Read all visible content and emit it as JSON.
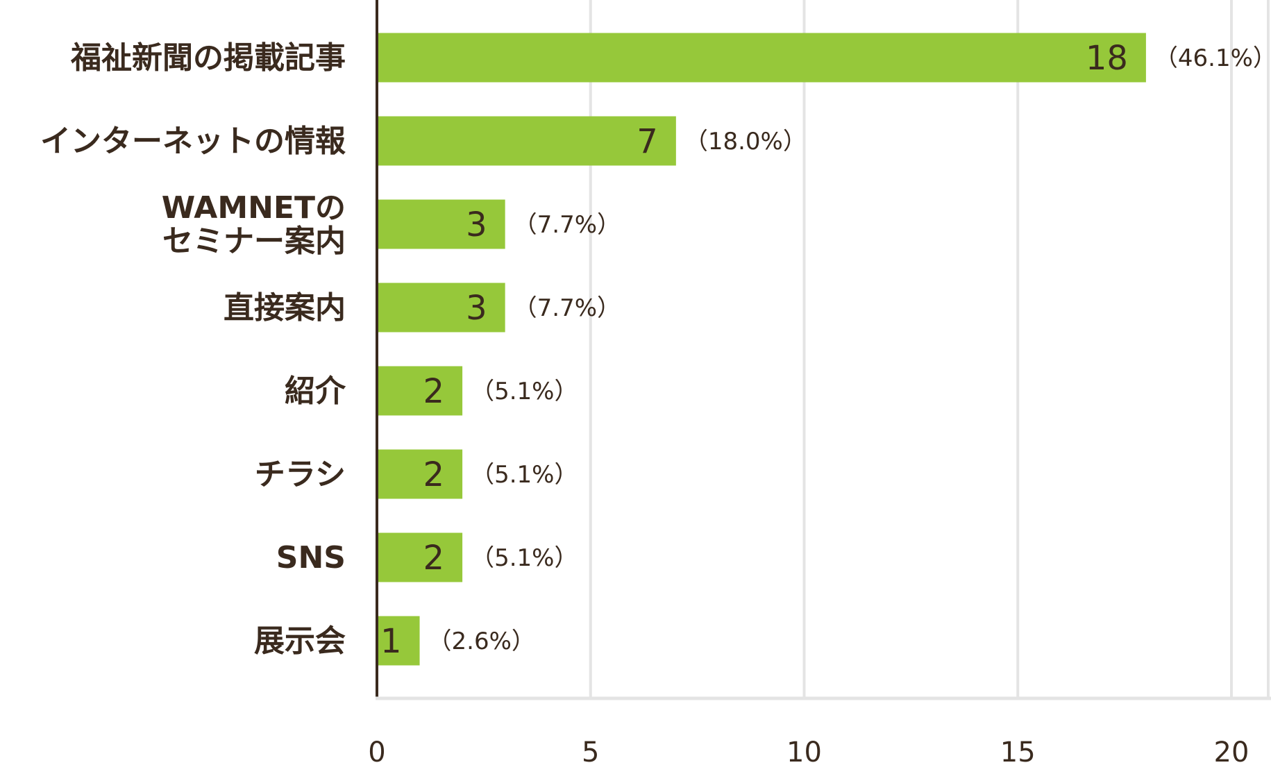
{
  "chart_data": {
    "type": "bar",
    "orientation": "horizontal",
    "categories": [
      [
        "福祉新聞の掲載記事"
      ],
      [
        "インターネットの情報"
      ],
      [
        "WAMNETの",
        "セミナー案内"
      ],
      [
        "直接案内"
      ],
      [
        "紹介"
      ],
      [
        "チラシ"
      ],
      [
        "SNS"
      ],
      [
        "展示会"
      ]
    ],
    "values": [
      18,
      7,
      3,
      3,
      2,
      2,
      2,
      1
    ],
    "value_labels": [
      "18",
      "7",
      "3",
      "3",
      "2",
      "2",
      "2",
      "1"
    ],
    "percent_labels": [
      "（46.1%）",
      "（18.0%）",
      "（7.7%）",
      "（7.7%）",
      "（5.1%）",
      "（5.1%）",
      "（5.1%）",
      "（2.6%）"
    ],
    "xlim": [
      0,
      20
    ],
    "xticks": [
      "0",
      "5",
      "10",
      "15",
      "20"
    ],
    "grid": "vertical",
    "colors": {
      "bar": "#96c83a",
      "grid": "#e4e4e4",
      "axis": "#3a2a1e",
      "text": "#3a2a1e"
    }
  }
}
